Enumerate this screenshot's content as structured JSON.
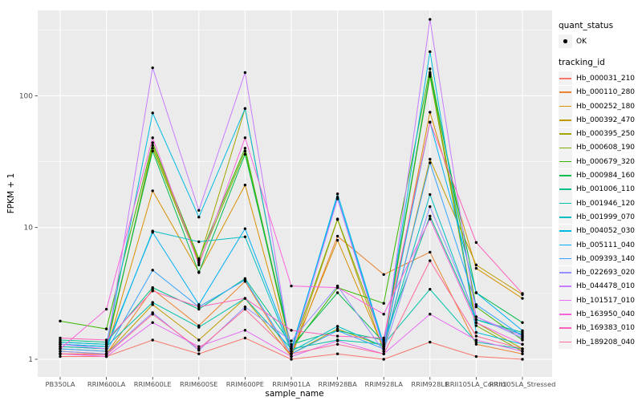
{
  "figure": {
    "background": "#FFFFFF",
    "panel_background": "#EBEBEB",
    "gridline_color": "#FFFFFF",
    "tick_color": "#333333",
    "tick_label_color": "#4D4D4D",
    "point_color": "#000000"
  },
  "chart_data": {
    "type": "line",
    "title": "",
    "xlabel": "sample_name",
    "ylabel": "FPKM + 1",
    "y_scale": "log10",
    "y_ticks": [
      1,
      10,
      100
    ],
    "y_minor_ticks": [
      3.162,
      31.623,
      316.228
    ],
    "ylim": [
      0.73,
      444
    ],
    "grid": "on",
    "legend_position": "right",
    "point_marker": {
      "shape": "point",
      "color": "#000000"
    },
    "categories": [
      "PB350LA",
      "RRIM600LA",
      "RRIM600LE",
      "RRIM600SE",
      "RRIM600PE",
      "RRIM901LA",
      "RRIM928BA",
      "RRIM928LA",
      "RRIM928LE",
      "RRII105LA_Control",
      "RRII105LA_Stressed"
    ],
    "series": [
      {
        "name": "Hb_000031_210",
        "color": "#F8766D",
        "values": [
          1.05,
          1.05,
          1.4,
          1.1,
          1.45,
          1.0,
          1.1,
          1.0,
          1.35,
          1.05,
          1.0
        ]
      },
      {
        "name": "Hb_000110_280",
        "color": "#EA8331",
        "values": [
          1.1,
          1.1,
          3.4,
          1.8,
          3.9,
          1.05,
          8.6,
          4.4,
          6.5,
          1.3,
          1.1
        ]
      },
      {
        "name": "Hb_000252_180",
        "color": "#D89000",
        "values": [
          1.2,
          1.15,
          19.0,
          4.6,
          21.0,
          1.1,
          8.0,
          1.2,
          75.0,
          4.9,
          2.9
        ]
      },
      {
        "name": "Hb_000392_470",
        "color": "#C09B00",
        "values": [
          1.15,
          1.1,
          2.6,
          1.4,
          2.9,
          1.05,
          11.5,
          1.15,
          33.0,
          5.2,
          3.1
        ]
      },
      {
        "name": "Hb_000395_250",
        "color": "#A3A500",
        "values": [
          1.25,
          1.2,
          42.0,
          5.6,
          80.0,
          1.1,
          1.7,
          1.25,
          150,
          1.9,
          1.2
        ]
      },
      {
        "name": "Hb_000608_190",
        "color": "#7CAE00",
        "values": [
          1.3,
          1.25,
          40.0,
          5.4,
          38.0,
          1.15,
          11.6,
          1.3,
          140,
          1.8,
          1.15
        ]
      },
      {
        "name": "Hb_000679_320",
        "color": "#39B600",
        "values": [
          1.95,
          1.7,
          44.0,
          5.8,
          40.0,
          1.2,
          3.5,
          2.66,
          160,
          2.5,
          1.4
        ]
      },
      {
        "name": "Hb_000984_160",
        "color": "#00BB4E",
        "values": [
          1.35,
          1.3,
          38.0,
          4.55,
          36.0,
          1.25,
          3.2,
          1.35,
          145,
          3.2,
          1.9
        ]
      },
      {
        "name": "Hb_001006_110",
        "color": "#00C087",
        "values": [
          1.4,
          1.35,
          3.5,
          2.4,
          4.1,
          1.3,
          1.65,
          1.4,
          12.2,
          2.0,
          1.6
        ]
      },
      {
        "name": "Hb_001946_120",
        "color": "#00C1A9",
        "values": [
          1.3,
          1.25,
          2.7,
          1.75,
          2.9,
          1.2,
          1.4,
          1.3,
          3.4,
          1.35,
          1.2
        ]
      },
      {
        "name": "Hb_001999_070",
        "color": "#00BFC4",
        "values": [
          1.25,
          1.2,
          9.4,
          7.8,
          8.5,
          1.15,
          1.78,
          1.25,
          17.8,
          2.0,
          1.55
        ]
      },
      {
        "name": "Hb_004052_030",
        "color": "#00BAE0",
        "values": [
          1.35,
          1.3,
          74.0,
          12.0,
          80.0,
          1.15,
          18.0,
          1.3,
          216,
          1.6,
          1.3
        ]
      },
      {
        "name": "Hb_005111_040",
        "color": "#00B0F6",
        "values": [
          1.3,
          1.25,
          9.2,
          2.6,
          9.8,
          1.2,
          17.0,
          1.25,
          63.0,
          3.2,
          1.65
        ]
      },
      {
        "name": "Hb_009393_140",
        "color": "#35A2FF",
        "values": [
          1.2,
          1.15,
          4.75,
          2.5,
          4.0,
          1.1,
          1.65,
          1.2,
          31.0,
          2.6,
          1.5
        ]
      },
      {
        "name": "Hb_022693_020",
        "color": "#9590FF",
        "values": [
          1.15,
          1.1,
          2.26,
          1.17,
          2.5,
          1.38,
          3.6,
          1.15,
          14.4,
          2.1,
          1.45
        ]
      },
      {
        "name": "Hb_044478_010",
        "color": "#C77CFF",
        "values": [
          1.3,
          1.2,
          163,
          13.5,
          150,
          1.1,
          16.5,
          1.2,
          380,
          2.1,
          1.5
        ]
      },
      {
        "name": "Hb_101517_010",
        "color": "#E76BF3",
        "values": [
          1.1,
          1.05,
          1.9,
          1.25,
          1.66,
          1.05,
          1.38,
          1.1,
          2.2,
          1.4,
          1.15
        ]
      },
      {
        "name": "Hb_163950_040",
        "color": "#FA62DB",
        "values": [
          1.2,
          2.4,
          48.0,
          5.2,
          48.0,
          3.6,
          3.5,
          2.2,
          11.6,
          1.9,
          1.3
        ]
      },
      {
        "name": "Hb_169383_010",
        "color": "#FF62BC",
        "values": [
          1.45,
          1.4,
          3.3,
          2.5,
          2.9,
          1.66,
          1.5,
          1.45,
          63.0,
          7.7,
          3.16
        ]
      },
      {
        "name": "Hb_189208_040",
        "color": "#FF6A98",
        "values": [
          1.1,
          1.08,
          2.2,
          1.2,
          2.4,
          1.1,
          1.3,
          1.1,
          5.6,
          1.5,
          1.2
        ]
      }
    ],
    "legend": {
      "quant_status_title": "quant_status",
      "quant_status_items": [
        {
          "label": "OK"
        }
      ],
      "tracking_id_title": "tracking_id"
    }
  }
}
